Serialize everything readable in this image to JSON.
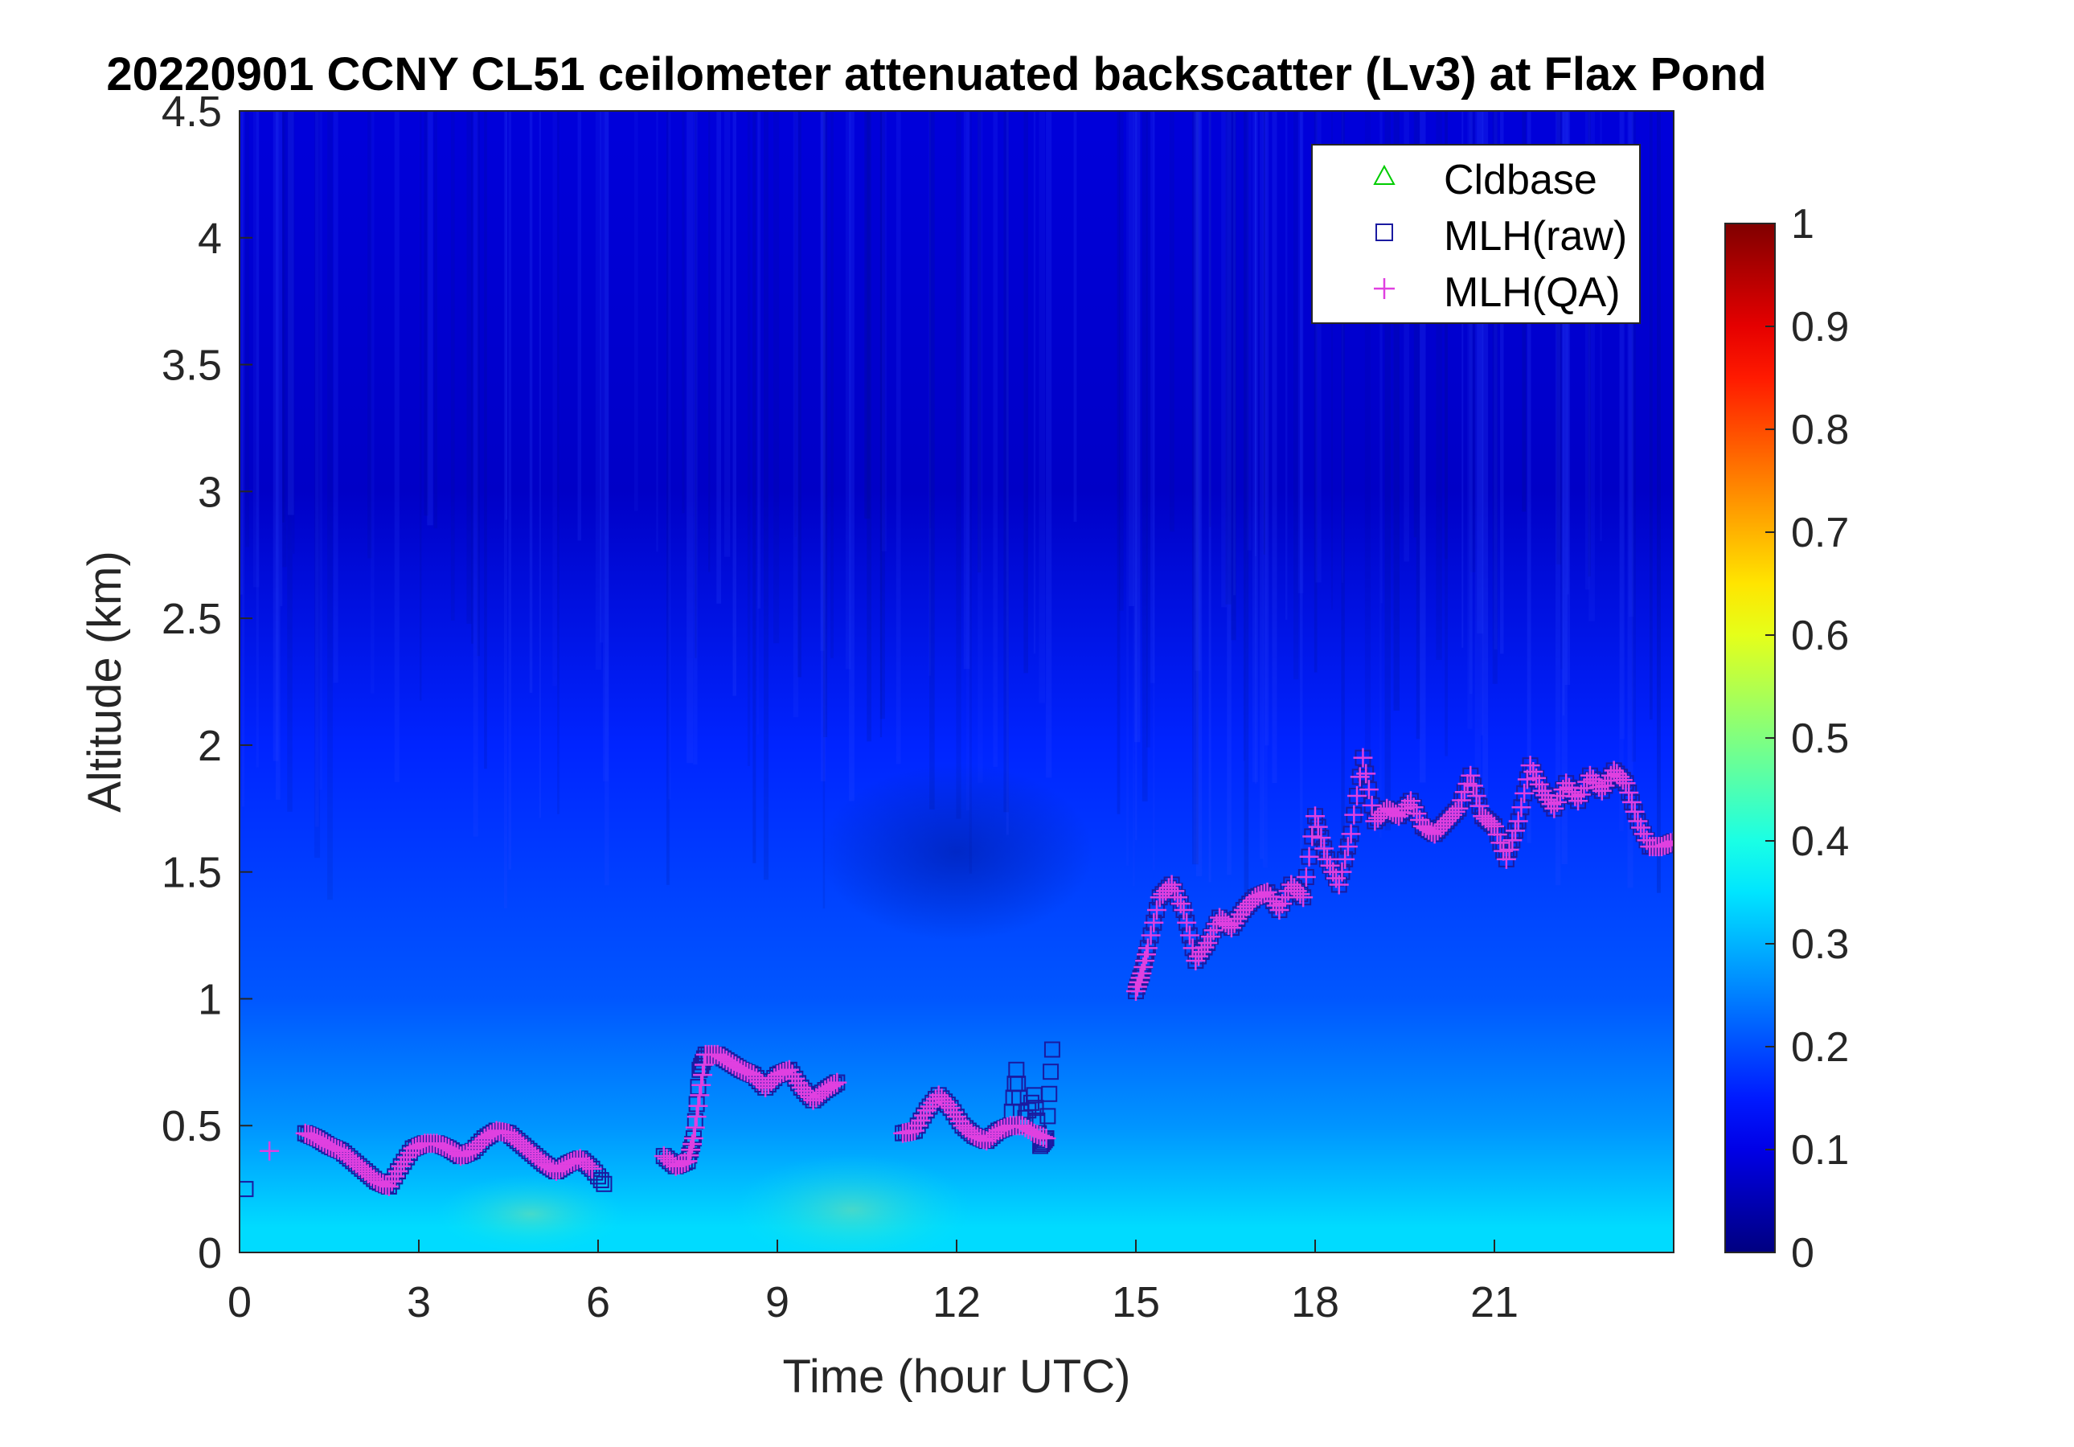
{
  "chart_data": {
    "type": "heatmap",
    "title": "20220901 CCNY CL51 ceilometer attenuated backscatter (Lv3) at Flax Pond",
    "xlabel": "Time (hour UTC)",
    "ylabel": "Altitude (km)",
    "xlim": [
      0,
      24
    ],
    "ylim": [
      0,
      4.5
    ],
    "x_ticks": [
      0,
      3,
      6,
      9,
      12,
      15,
      18,
      21
    ],
    "x_tick_labels": [
      "0",
      "3",
      "6",
      "9",
      "12",
      "15",
      "18",
      "21"
    ],
    "y_ticks": [
      0,
      0.5,
      1,
      1.5,
      2,
      2.5,
      3,
      3.5,
      4,
      4.5
    ],
    "y_tick_labels": [
      "0",
      "0.5",
      "1",
      "1.5",
      "2",
      "2.5",
      "3",
      "3.5",
      "4",
      "4.5"
    ],
    "colorbar": {
      "colormap": "jet",
      "range": [
        0,
        1
      ],
      "ticks": [
        0,
        0.1,
        0.2,
        0.3,
        0.4,
        0.5,
        0.6,
        0.7,
        0.8,
        0.9,
        1
      ],
      "tick_labels": [
        "0",
        "0.1",
        "0.2",
        "0.3",
        "0.4",
        "0.5",
        "0.6",
        "0.7",
        "0.8",
        "0.9",
        "1"
      ]
    },
    "backscatter_layers": [
      {
        "altitude_km": 0.1,
        "value": 0.34
      },
      {
        "altitude_km": 0.5,
        "value": 0.27
      },
      {
        "altitude_km": 1.0,
        "value": 0.21
      },
      {
        "altitude_km": 2.0,
        "value": 0.16
      },
      {
        "altitude_km": 3.0,
        "value": 0.07
      },
      {
        "altitude_km": 4.5,
        "value": 0.09
      }
    ],
    "legend": {
      "position": "top-right",
      "entries": [
        {
          "label": "Cldbase",
          "marker": "triangle",
          "color": "#00cc00"
        },
        {
          "label": "MLH(raw)",
          "marker": "square",
          "color": "#1a1aa0"
        },
        {
          "label": "MLH(QA)",
          "marker": "plus",
          "color": "#e040e0"
        }
      ]
    },
    "series": [
      {
        "name": "MLH(raw)",
        "x": [
          0.1,
          1.1,
          1.3,
          1.5,
          1.7,
          1.9,
          2.1,
          2.3,
          2.5,
          2.7,
          2.9,
          3.1,
          3.3,
          3.5,
          3.7,
          3.9,
          4.1,
          4.3,
          4.5,
          4.7,
          4.9,
          5.1,
          5.3,
          5.5,
          5.7,
          5.9,
          6.1,
          7.1,
          7.3,
          7.5,
          7.6,
          7.7,
          7.8,
          8.0,
          8.2,
          8.4,
          8.6,
          8.8,
          9.0,
          9.2,
          9.4,
          9.6,
          9.8,
          10.0,
          11.1,
          11.3,
          11.5,
          11.7,
          11.9,
          12.1,
          12.3,
          12.5,
          12.7,
          12.9,
          13.0,
          13.1,
          13.3,
          13.4,
          13.5,
          13.6,
          15.0,
          15.1,
          15.2,
          15.4,
          15.6,
          15.8,
          16.0,
          16.2,
          16.4,
          16.6,
          16.8,
          17.0,
          17.2,
          17.4,
          17.6,
          17.8,
          18.0,
          18.2,
          18.4,
          18.6,
          18.8,
          19.0,
          19.2,
          19.4,
          19.6,
          19.8,
          20.0,
          20.2,
          20.4,
          20.6,
          20.8,
          21.0,
          21.2,
          21.4,
          21.6,
          21.8,
          22.0,
          22.2,
          22.4,
          22.6,
          22.8,
          23.0,
          23.2,
          23.4,
          23.6,
          23.8,
          24.0
        ],
        "y": [
          0.25,
          0.47,
          0.45,
          0.42,
          0.4,
          0.36,
          0.32,
          0.28,
          0.26,
          0.34,
          0.41,
          0.43,
          0.43,
          0.41,
          0.38,
          0.4,
          0.45,
          0.48,
          0.47,
          0.43,
          0.39,
          0.35,
          0.32,
          0.35,
          0.37,
          0.33,
          0.27,
          0.38,
          0.34,
          0.36,
          0.45,
          0.72,
          0.78,
          0.78,
          0.75,
          0.72,
          0.7,
          0.65,
          0.7,
          0.72,
          0.65,
          0.6,
          0.64,
          0.67,
          0.47,
          0.48,
          0.56,
          0.62,
          0.57,
          0.5,
          0.46,
          0.44,
          0.48,
          0.5,
          0.72,
          0.5,
          0.62,
          0.42,
          0.45,
          0.8,
          1.03,
          1.1,
          1.2,
          1.4,
          1.45,
          1.35,
          1.15,
          1.22,
          1.32,
          1.28,
          1.35,
          1.4,
          1.42,
          1.35,
          1.45,
          1.4,
          1.72,
          1.55,
          1.45,
          1.65,
          1.95,
          1.7,
          1.75,
          1.72,
          1.78,
          1.68,
          1.65,
          1.7,
          1.75,
          1.88,
          1.72,
          1.68,
          1.55,
          1.7,
          1.92,
          1.82,
          1.75,
          1.85,
          1.78,
          1.88,
          1.82,
          1.9,
          1.85,
          1.7,
          1.6,
          1.6,
          1.62
        ]
      },
      {
        "name": "MLH(QA)",
        "x": [
          0.5,
          1.1,
          1.3,
          1.5,
          1.7,
          1.9,
          2.1,
          2.3,
          2.5,
          2.7,
          2.9,
          3.1,
          3.3,
          3.5,
          3.7,
          3.9,
          4.1,
          4.3,
          4.5,
          4.7,
          4.9,
          5.1,
          5.3,
          5.5,
          5.7,
          5.9,
          7.1,
          7.3,
          7.5,
          7.6,
          7.7,
          7.8,
          8.0,
          8.2,
          8.4,
          8.6,
          8.8,
          9.0,
          9.2,
          9.4,
          9.6,
          9.8,
          10.0,
          11.1,
          11.3,
          11.5,
          11.7,
          11.9,
          12.1,
          12.3,
          12.5,
          12.7,
          12.9,
          13.1,
          13.3,
          13.5,
          15.0,
          15.1,
          15.2,
          15.4,
          15.6,
          15.8,
          16.0,
          16.2,
          16.4,
          16.6,
          16.8,
          17.0,
          17.2,
          17.4,
          17.6,
          17.8,
          18.0,
          18.2,
          18.4,
          18.6,
          18.8,
          19.0,
          19.2,
          19.4,
          19.6,
          19.8,
          20.0,
          20.2,
          20.4,
          20.6,
          20.8,
          21.0,
          21.2,
          21.4,
          21.6,
          21.8,
          22.0,
          22.2,
          22.4,
          22.6,
          22.8,
          23.0,
          23.2,
          23.4,
          23.6,
          23.8,
          24.0
        ],
        "y": [
          0.4,
          0.47,
          0.45,
          0.42,
          0.4,
          0.36,
          0.32,
          0.28,
          0.26,
          0.34,
          0.41,
          0.43,
          0.43,
          0.41,
          0.38,
          0.4,
          0.45,
          0.48,
          0.47,
          0.43,
          0.39,
          0.35,
          0.32,
          0.35,
          0.37,
          0.33,
          0.38,
          0.34,
          0.36,
          0.45,
          0.62,
          0.78,
          0.78,
          0.75,
          0.72,
          0.7,
          0.65,
          0.7,
          0.72,
          0.65,
          0.6,
          0.64,
          0.67,
          0.47,
          0.48,
          0.56,
          0.62,
          0.57,
          0.5,
          0.46,
          0.44,
          0.48,
          0.5,
          0.5,
          0.47,
          0.45,
          1.03,
          1.1,
          1.2,
          1.4,
          1.45,
          1.35,
          1.15,
          1.22,
          1.32,
          1.28,
          1.35,
          1.4,
          1.42,
          1.35,
          1.45,
          1.4,
          1.72,
          1.55,
          1.45,
          1.65,
          1.95,
          1.7,
          1.75,
          1.72,
          1.78,
          1.68,
          1.65,
          1.7,
          1.75,
          1.88,
          1.72,
          1.68,
          1.55,
          1.7,
          1.92,
          1.82,
          1.75,
          1.85,
          1.78,
          1.88,
          1.82,
          1.9,
          1.85,
          1.7,
          1.6,
          1.6,
          1.62
        ]
      },
      {
        "name": "Cldbase",
        "x": [],
        "y": []
      }
    ]
  }
}
